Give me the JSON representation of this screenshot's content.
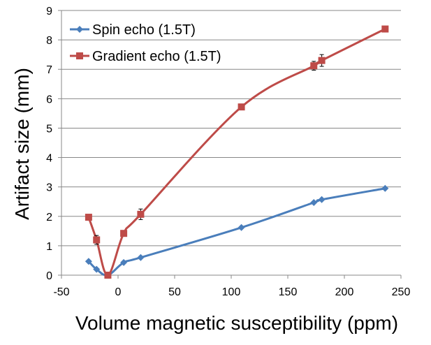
{
  "chart_data": {
    "type": "line",
    "title": "",
    "xlabel": "Volume magnetic susceptibility (ppm)",
    "ylabel": "Artifact size (mm)",
    "xlim": [
      -50,
      250
    ],
    "ylim": [
      0,
      9
    ],
    "xticks": [
      "-50",
      "0",
      "50",
      "100",
      "150",
      "200",
      "250"
    ],
    "yticks": [
      "0",
      "1",
      "2",
      "3",
      "4",
      "5",
      "6",
      "7",
      "8",
      "9"
    ],
    "grid": true,
    "legend_position": "top-left",
    "series": [
      {
        "name": "Spin echo (1.5T)",
        "color": "#4a7ebb",
        "marker": "diamond",
        "x": [
          -26,
          -19,
          -9,
          5,
          20,
          109,
          173,
          180,
          236
        ],
        "y": [
          0.47,
          0.2,
          0.0,
          0.43,
          0.6,
          1.62,
          2.47,
          2.57,
          2.95
        ],
        "err": [
          0,
          0,
          0,
          0,
          0,
          0,
          0,
          0,
          0
        ]
      },
      {
        "name": "Gradient echo (1.5T)",
        "color": "#be4b48",
        "marker": "square",
        "x": [
          -26,
          -19,
          -9,
          5,
          20,
          109,
          173,
          180,
          236
        ],
        "y": [
          1.97,
          1.2,
          0.0,
          1.42,
          2.07,
          5.72,
          7.12,
          7.3,
          8.37
        ],
        "err": [
          0,
          0.15,
          0,
          0.1,
          0.18,
          0.08,
          0.15,
          0.2,
          0.05
        ]
      }
    ]
  }
}
